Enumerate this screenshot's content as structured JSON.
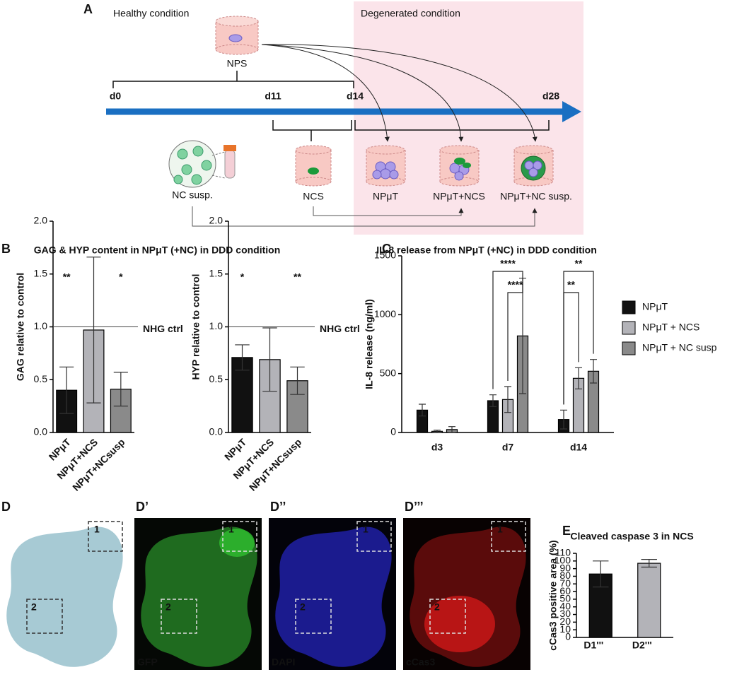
{
  "panel_a": {
    "letter": "A",
    "healthy": "Healthy condition",
    "degenerated": "Degenerated condition",
    "nps": "NPS",
    "days": [
      "d0",
      "d11",
      "d14",
      "d28"
    ],
    "nc_susp": "NC susp.",
    "ncs": "NCS",
    "npmut": "NPμT",
    "npmut_ncs": "NPμT+NCS",
    "npmut_ncsusp": "NPμT+NC susp."
  },
  "panel_b": {
    "letter": "B",
    "title": "GAG & HYP content in NPμT (+NC) in DDD condition"
  },
  "panel_c": {
    "letter": "C"
  },
  "panel_d": {
    "letters": [
      "D",
      "D’",
      "D’’",
      "D’’’"
    ],
    "stains": [
      "GFP",
      "DAPI",
      "cCas3"
    ],
    "boxes": [
      "1",
      "2"
    ]
  },
  "panel_e": {
    "letter": "E"
  },
  "chart_data": [
    {
      "type": "bar",
      "ylabel": "GAG relative to control",
      "categories": [
        "NPμT",
        "NPμT+NCS",
        "NPμT+NCsusp"
      ],
      "values": [
        0.4,
        0.97,
        0.41
      ],
      "errors": [
        0.22,
        0.69,
        0.16
      ],
      "colors": [
        "#111111",
        "#b3b3b8",
        "#8a8a8a"
      ],
      "significance": [
        "**",
        null,
        "*"
      ],
      "reference": {
        "value": 1,
        "label": "NHG ctrl"
      },
      "ylim": [
        0,
        2
      ],
      "yticks": [
        {
          "value": 0,
          "label": "0.0"
        },
        0.5,
        {
          "value": 1,
          "label": "1.0"
        },
        1.5,
        {
          "value": 2,
          "label": "2.0"
        }
      ]
    },
    {
      "type": "bar",
      "ylabel": "HYP relative to control",
      "categories": [
        "NPμT",
        "NPμT+NCS",
        "NPμT+NCsusp"
      ],
      "values": [
        0.71,
        0.69,
        0.49
      ],
      "errors": [
        0.12,
        0.3,
        0.13
      ],
      "colors": [
        "#111111",
        "#b3b3b8",
        "#8a8a8a"
      ],
      "significance": [
        "*",
        null,
        "**"
      ],
      "reference": {
        "value": 1,
        "label": "NHG ctrl"
      },
      "ylim": [
        0,
        2
      ],
      "yticks": [
        {
          "value": 0,
          "label": "0.0"
        },
        0.5,
        {
          "value": 1,
          "label": "1.0"
        },
        1.5,
        {
          "value": 2,
          "label": "2.0"
        }
      ]
    },
    {
      "type": "grouped_bar",
      "title": "IL-8 release from NPμT (+NC) in DDD condition",
      "ylabel": "IL-8 release (ng/ml)",
      "categories": [
        "d3",
        "d7",
        "d14"
      ],
      "series": [
        {
          "name": "NPμT",
          "color": "#111111",
          "values": [
            190,
            270,
            110
          ],
          "errors": [
            50,
            50,
            80
          ]
        },
        {
          "name": "NPμT + NCS",
          "color": "#b3b3b8",
          "values": [
            10,
            280,
            460
          ],
          "errors": [
            10,
            110,
            90
          ]
        },
        {
          "name": "NPμT + NC susp",
          "color": "#8a8a8a",
          "values": [
            25,
            820,
            520
          ],
          "errors": [
            25,
            490,
            100
          ]
        }
      ],
      "brackets": [
        {
          "category": 1,
          "from": 0,
          "to": 2,
          "text": "****"
        },
        {
          "category": 1,
          "from": 1,
          "to": 2,
          "text": "****"
        },
        {
          "category": 2,
          "from": 0,
          "to": 2,
          "text": "**"
        },
        {
          "category": 2,
          "from": 0,
          "to": 1,
          "text": "**"
        }
      ],
      "ylim": [
        0,
        1500
      ],
      "yticks": [
        0,
        500,
        1000,
        1500
      ]
    },
    {
      "type": "bar",
      "title": "Cleaved caspase 3 in NCS",
      "ylabel": "cCas3 positive area (%)",
      "categories": [
        "D1'''",
        "D2'''"
      ],
      "values": [
        83,
        97
      ],
      "errors": [
        17,
        5
      ],
      "colors": [
        "#111111",
        "#b3b3b8"
      ],
      "ylim": [
        0,
        110
      ],
      "yticks": [
        0,
        10,
        20,
        30,
        40,
        50,
        60,
        70,
        80,
        90,
        100,
        110
      ]
    }
  ]
}
